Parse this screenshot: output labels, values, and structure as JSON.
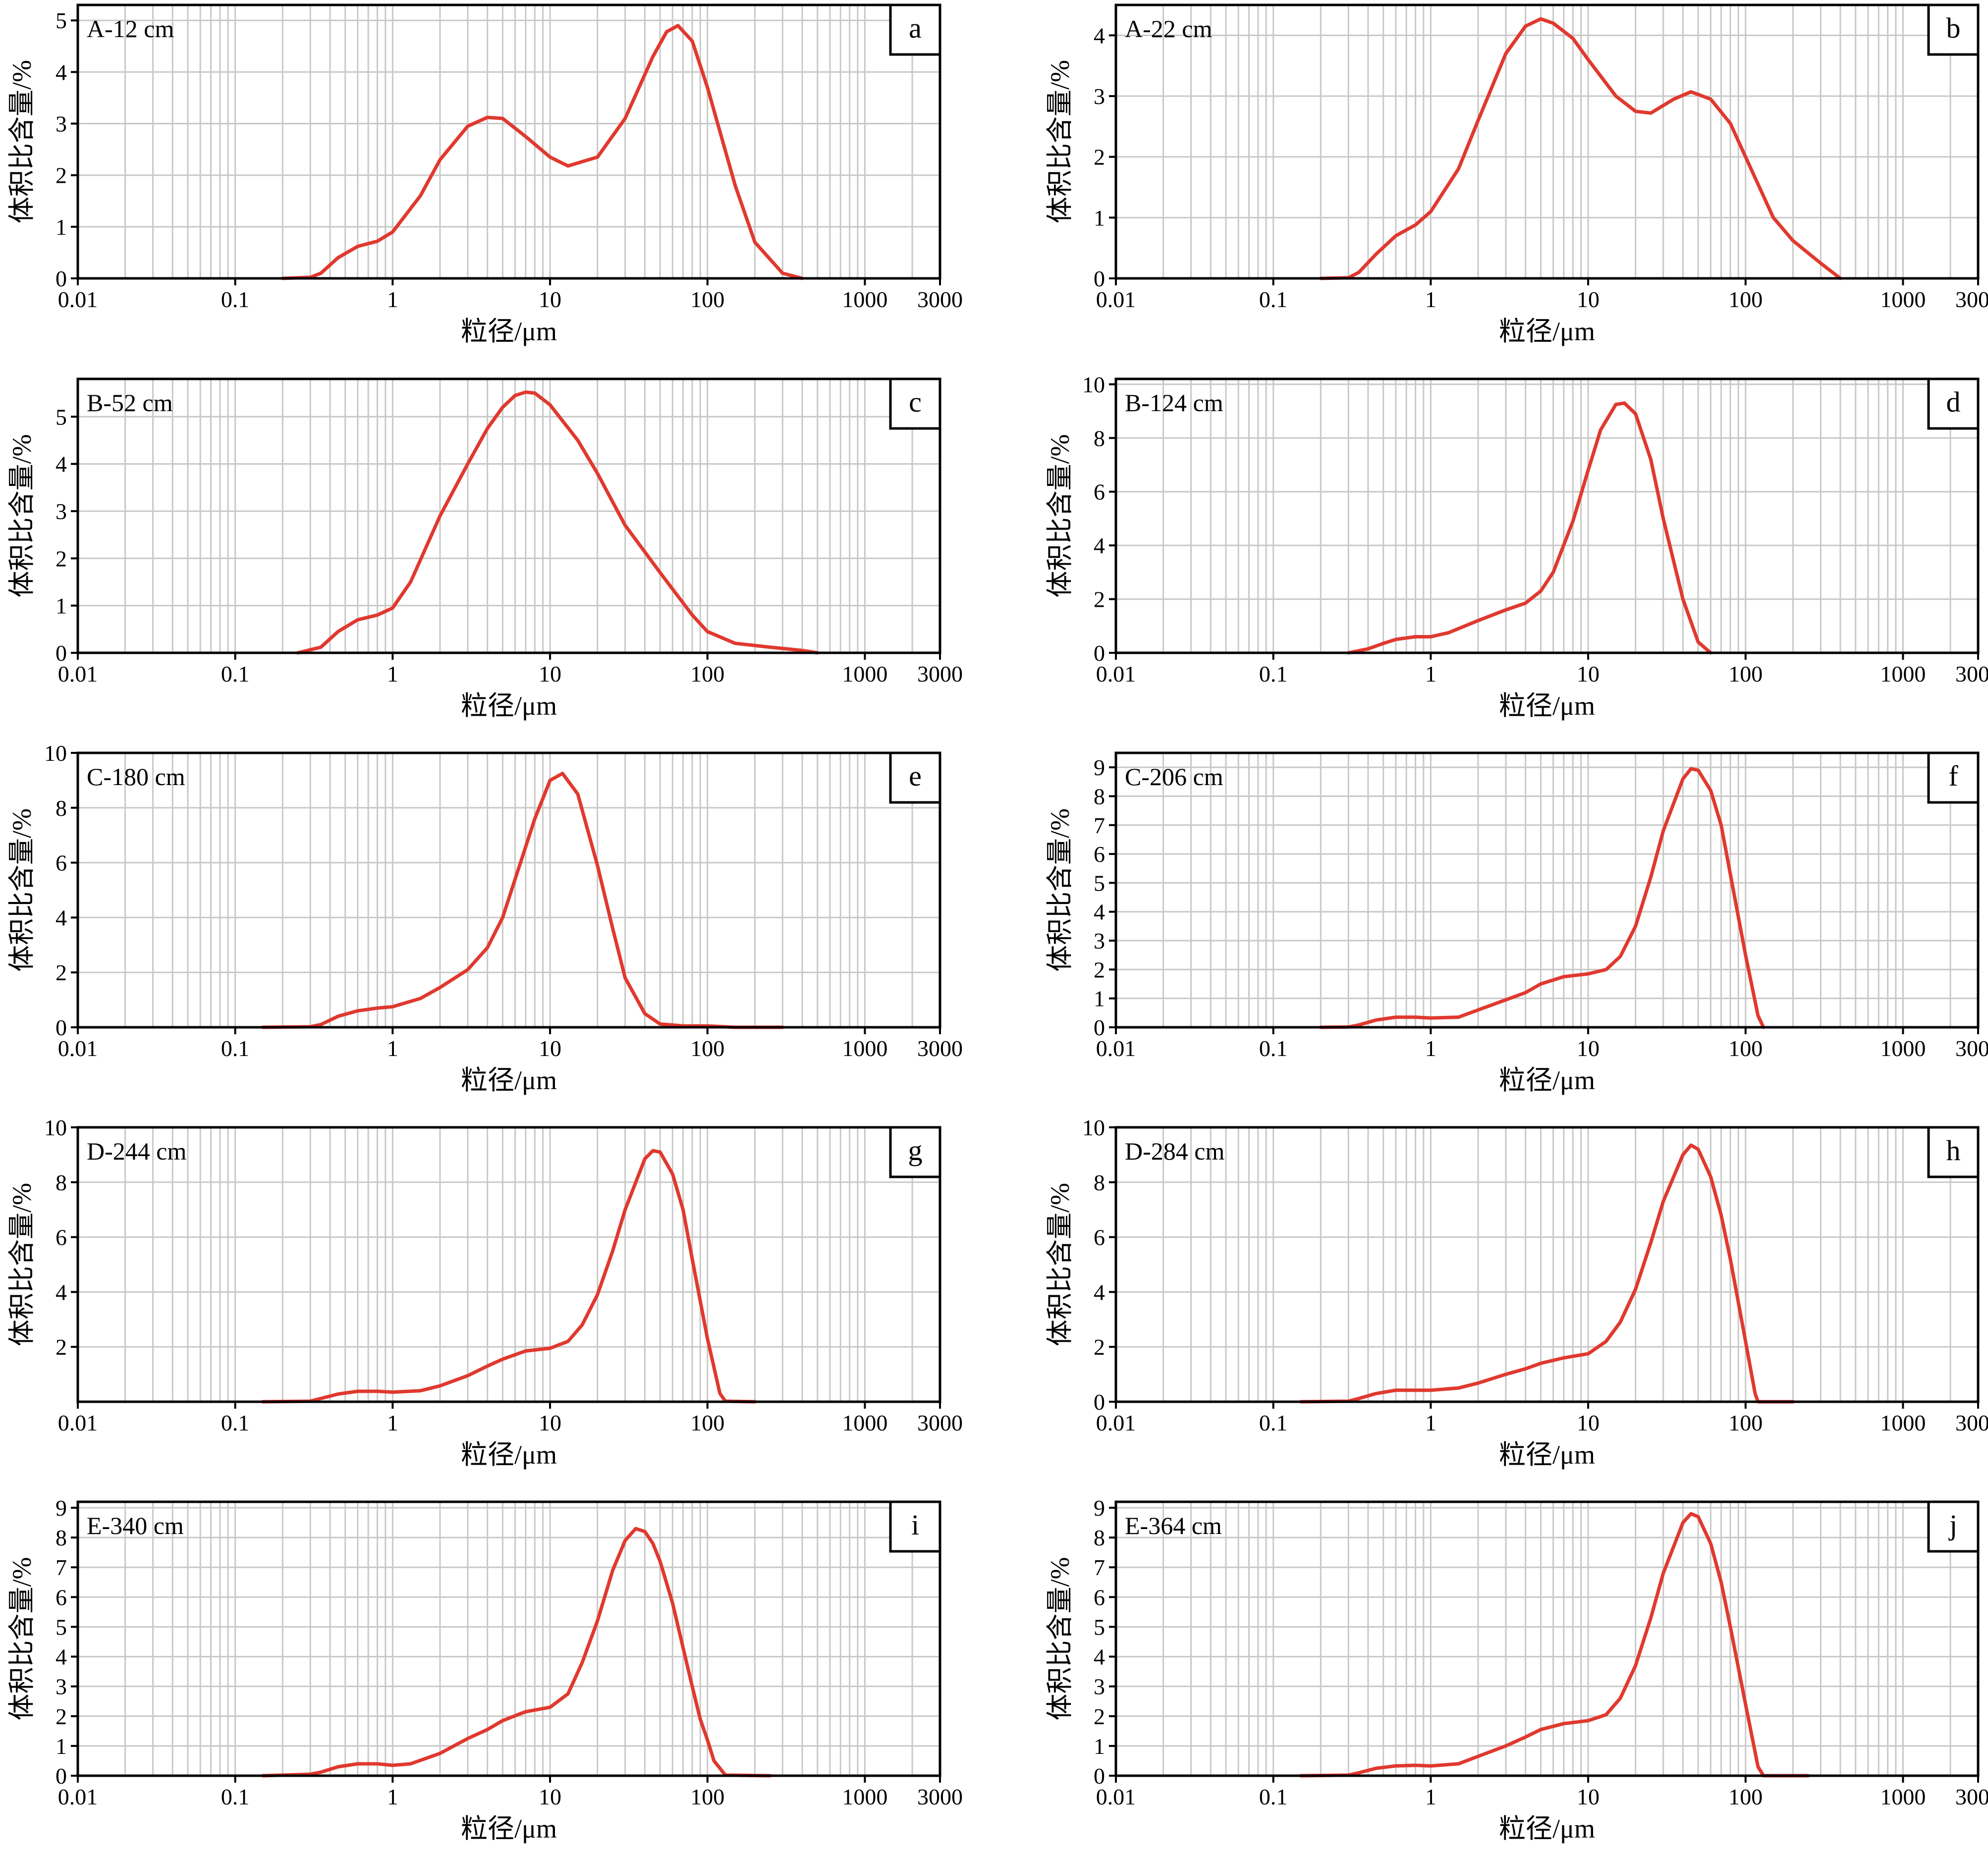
{
  "figure": {
    "x_axis_label": "粒径/μm",
    "y_axis_label": "体积比含量/%",
    "x_tick_labels": [
      "0.01",
      "0.1",
      "1",
      "10",
      "100",
      "1000",
      "3000"
    ],
    "curve_color": "#e0392f",
    "grid_color": "#c8c8c8"
  },
  "chart_data": [
    {
      "type": "line",
      "panel": "a",
      "sample": "A-12 cm",
      "xscale": "log",
      "xlim": [
        0.01,
        3000
      ],
      "ylim": [
        0,
        5.3
      ],
      "yticks": [
        0,
        1,
        2,
        3,
        4,
        5
      ],
      "series": [
        {
          "x": [
            0.2,
            0.3,
            0.35,
            0.45,
            0.6,
            0.8,
            1,
            1.5,
            2,
            3,
            4,
            5,
            7,
            10,
            13,
            20,
            30,
            45,
            55,
            65,
            80,
            100,
            150,
            200,
            300,
            400
          ],
          "y": [
            0,
            0.02,
            0.1,
            0.4,
            0.62,
            0.72,
            0.9,
            1.6,
            2.3,
            2.95,
            3.12,
            3.1,
            2.75,
            2.35,
            2.18,
            2.35,
            3.1,
            4.3,
            4.78,
            4.9,
            4.6,
            3.7,
            1.8,
            0.7,
            0.1,
            0
          ]
        }
      ]
    },
    {
      "type": "line",
      "panel": "b",
      "sample": "A-22 cm",
      "xscale": "log",
      "xlim": [
        0.01,
        3000
      ],
      "ylim": [
        0,
        4.5
      ],
      "yticks": [
        0,
        1,
        2,
        3,
        4
      ],
      "series": [
        {
          "x": [
            0.2,
            0.3,
            0.35,
            0.45,
            0.6,
            0.8,
            1,
            1.5,
            2,
            3,
            4,
            5,
            6,
            8,
            10,
            15,
            20,
            25,
            35,
            45,
            60,
            80,
            100,
            150,
            200,
            300,
            400
          ],
          "y": [
            0,
            0.01,
            0.1,
            0.4,
            0.7,
            0.88,
            1.1,
            1.8,
            2.6,
            3.7,
            4.15,
            4.27,
            4.2,
            3.95,
            3.6,
            3.0,
            2.75,
            2.72,
            2.95,
            3.07,
            2.95,
            2.55,
            2.0,
            1.0,
            0.62,
            0.25,
            0
          ]
        }
      ]
    },
    {
      "type": "line",
      "panel": "c",
      "sample": "B-52 cm",
      "xscale": "log",
      "xlim": [
        0.01,
        3000
      ],
      "ylim": [
        0,
        5.8
      ],
      "yticks": [
        0,
        1,
        2,
        3,
        4,
        5
      ],
      "series": [
        {
          "x": [
            0.25,
            0.35,
            0.45,
            0.6,
            0.8,
            1,
            1.3,
            2,
            3,
            4,
            5,
            6,
            7,
            8,
            10,
            15,
            20,
            30,
            50,
            80,
            100,
            150,
            250,
            400,
            500
          ],
          "y": [
            0,
            0.12,
            0.45,
            0.7,
            0.8,
            0.95,
            1.5,
            2.9,
            4.0,
            4.75,
            5.2,
            5.45,
            5.52,
            5.5,
            5.25,
            4.5,
            3.8,
            2.7,
            1.7,
            0.8,
            0.45,
            0.2,
            0.12,
            0.05,
            0
          ]
        }
      ]
    },
    {
      "type": "line",
      "panel": "d",
      "sample": "B-124 cm",
      "xscale": "log",
      "xlim": [
        0.01,
        3000
      ],
      "ylim": [
        0,
        10.2
      ],
      "yticks": [
        0,
        2,
        4,
        6,
        8,
        10
      ],
      "series": [
        {
          "x": [
            0.3,
            0.4,
            0.5,
            0.6,
            0.8,
            1,
            1.3,
            2,
            3,
            4,
            5,
            6,
            8,
            10,
            12,
            15,
            17,
            20,
            25,
            30,
            40,
            50,
            60
          ],
          "y": [
            0,
            0.15,
            0.35,
            0.5,
            0.6,
            0.6,
            0.75,
            1.2,
            1.6,
            1.85,
            2.3,
            3.0,
            4.9,
            6.8,
            8.3,
            9.25,
            9.3,
            8.9,
            7.2,
            5.0,
            2.0,
            0.4,
            0
          ]
        }
      ]
    },
    {
      "type": "line",
      "panel": "e",
      "sample": "C-180 cm",
      "xscale": "log",
      "xlim": [
        0.01,
        3000
      ],
      "ylim": [
        0,
        10
      ],
      "yticks": [
        0,
        2,
        4,
        6,
        8,
        10
      ],
      "series": [
        {
          "x": [
            0.15,
            0.3,
            0.35,
            0.45,
            0.6,
            0.8,
            1,
            1.5,
            2,
            3,
            4,
            5,
            6,
            8,
            10,
            12,
            15,
            20,
            25,
            30,
            40,
            50,
            70,
            100,
            150,
            300
          ],
          "y": [
            0,
            0.02,
            0.1,
            0.4,
            0.6,
            0.7,
            0.75,
            1.05,
            1.45,
            2.1,
            2.9,
            4.0,
            5.4,
            7.6,
            9.0,
            9.25,
            8.5,
            5.9,
            3.6,
            1.8,
            0.5,
            0.12,
            0.05,
            0.05,
            0,
            0
          ]
        }
      ]
    },
    {
      "type": "line",
      "panel": "f",
      "sample": "C-206 cm",
      "xscale": "log",
      "xlim": [
        0.01,
        3000
      ],
      "ylim": [
        0,
        9.5
      ],
      "yticks": [
        0,
        1,
        2,
        3,
        4,
        5,
        6,
        7,
        8,
        9
      ],
      "series": [
        {
          "x": [
            0.2,
            0.3,
            0.35,
            0.45,
            0.6,
            0.8,
            1,
            1.5,
            2,
            3,
            4,
            5,
            7,
            10,
            13,
            16,
            20,
            25,
            30,
            40,
            45,
            50,
            60,
            70,
            80,
            100,
            120,
            130
          ],
          "y": [
            0,
            0.01,
            0.08,
            0.25,
            0.35,
            0.35,
            0.32,
            0.35,
            0.6,
            0.95,
            1.2,
            1.5,
            1.75,
            1.85,
            2.0,
            2.45,
            3.5,
            5.2,
            6.8,
            8.6,
            8.95,
            8.9,
            8.2,
            7.0,
            5.3,
            2.5,
            0.4,
            0
          ]
        }
      ]
    },
    {
      "type": "line",
      "panel": "g",
      "sample": "D-244 cm",
      "xscale": "log",
      "xlim": [
        0.01,
        3000
      ],
      "ylim": [
        0,
        10
      ],
      "yticks": [
        2,
        4,
        6,
        8,
        10
      ],
      "series": [
        {
          "x": [
            0.15,
            0.3,
            0.35,
            0.45,
            0.6,
            0.8,
            1,
            1.5,
            2,
            3,
            4,
            5,
            7,
            10,
            13,
            16,
            20,
            25,
            30,
            40,
            45,
            50,
            60,
            70,
            80,
            100,
            120,
            130,
            200
          ],
          "y": [
            0,
            0.02,
            0.12,
            0.28,
            0.38,
            0.38,
            0.35,
            0.4,
            0.58,
            0.95,
            1.3,
            1.55,
            1.85,
            1.95,
            2.2,
            2.8,
            3.9,
            5.5,
            7.0,
            8.85,
            9.15,
            9.1,
            8.3,
            7.0,
            5.2,
            2.3,
            0.3,
            0.02,
            0
          ]
        }
      ]
    },
    {
      "type": "line",
      "panel": "h",
      "sample": "D-284 cm",
      "xscale": "log",
      "xlim": [
        0.01,
        3000
      ],
      "ylim": [
        0,
        10
      ],
      "yticks": [
        0,
        2,
        4,
        6,
        8,
        10
      ],
      "series": [
        {
          "x": [
            0.15,
            0.3,
            0.35,
            0.45,
            0.6,
            0.8,
            1,
            1.5,
            2,
            3,
            4,
            5,
            7,
            10,
            13,
            16,
            20,
            25,
            30,
            40,
            45,
            50,
            60,
            70,
            80,
            100,
            115,
            120,
            200
          ],
          "y": [
            0,
            0.02,
            0.12,
            0.3,
            0.42,
            0.42,
            0.42,
            0.5,
            0.68,
            1.0,
            1.2,
            1.4,
            1.6,
            1.75,
            2.2,
            2.9,
            4.1,
            5.8,
            7.3,
            9.0,
            9.35,
            9.2,
            8.2,
            6.8,
            5.2,
            2.2,
            0.3,
            0,
            0
          ]
        }
      ]
    },
    {
      "type": "line",
      "panel": "i",
      "sample": "E-340 cm",
      "xscale": "log",
      "xlim": [
        0.01,
        3000
      ],
      "ylim": [
        0,
        9.2
      ],
      "yticks": [
        0,
        1,
        2,
        3,
        4,
        5,
        6,
        7,
        8,
        9
      ],
      "series": [
        {
          "x": [
            0.15,
            0.3,
            0.35,
            0.45,
            0.6,
            0.8,
            1,
            1.3,
            2,
            3,
            4,
            5,
            7,
            10,
            13,
            16,
            20,
            25,
            30,
            35,
            40,
            45,
            50,
            60,
            70,
            80,
            90,
            100,
            110,
            130,
            250
          ],
          "y": [
            0,
            0.05,
            0.12,
            0.3,
            0.4,
            0.4,
            0.35,
            0.4,
            0.75,
            1.25,
            1.55,
            1.85,
            2.15,
            2.3,
            2.75,
            3.8,
            5.2,
            6.9,
            7.9,
            8.3,
            8.2,
            7.8,
            7.2,
            5.8,
            4.3,
            3.0,
            1.9,
            1.2,
            0.5,
            0.02,
            0
          ]
        }
      ]
    },
    {
      "type": "line",
      "panel": "j",
      "sample": "E-364 cm",
      "xscale": "log",
      "xlim": [
        0.01,
        3000
      ],
      "ylim": [
        0,
        9.2
      ],
      "yticks": [
        0,
        1,
        2,
        3,
        4,
        5,
        6,
        7,
        8,
        9
      ],
      "series": [
        {
          "x": [
            0.15,
            0.3,
            0.35,
            0.45,
            0.6,
            0.8,
            1,
            1.5,
            2,
            3,
            4,
            5,
            7,
            10,
            13,
            16,
            20,
            25,
            30,
            40,
            45,
            50,
            60,
            70,
            80,
            100,
            120,
            130,
            250
          ],
          "y": [
            0,
            0.02,
            0.1,
            0.25,
            0.33,
            0.35,
            0.33,
            0.4,
            0.65,
            1.0,
            1.3,
            1.55,
            1.75,
            1.85,
            2.05,
            2.6,
            3.7,
            5.3,
            6.8,
            8.5,
            8.8,
            8.7,
            7.8,
            6.5,
            5.0,
            2.4,
            0.3,
            0,
            0
          ]
        }
      ]
    }
  ]
}
